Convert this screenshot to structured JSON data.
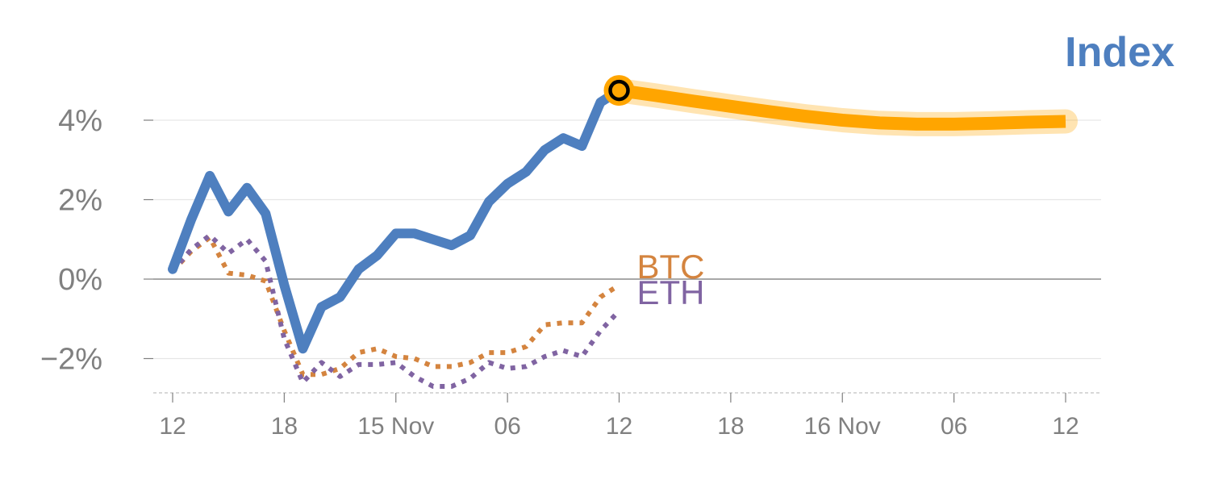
{
  "chart_data": {
    "type": "line",
    "title": "Index",
    "y_ticks": [
      "−2%",
      "0%",
      "2%",
      "4%"
    ],
    "y_tick_values": [
      -2,
      0,
      2,
      4
    ],
    "x_ticks": [
      "12",
      "18",
      "15 Nov",
      "06",
      "12",
      "18",
      "16 Nov",
      "06",
      "12"
    ],
    "x_tick_hours": [
      0,
      6,
      12,
      18,
      24,
      30,
      36,
      42,
      48
    ],
    "ylim": [
      -2.85,
      4.9
    ],
    "xlim": [
      -1,
      50
    ],
    "grid": true,
    "series": [
      {
        "name": "",
        "style": "solid",
        "color": "#4e7fbf",
        "x": [
          0,
          1,
          2,
          3,
          4,
          5,
          6,
          7,
          8,
          9,
          10,
          11,
          12,
          13,
          14,
          15,
          16,
          17,
          18,
          19,
          20,
          21,
          22,
          23,
          24
        ],
        "y": [
          0.25,
          1.5,
          2.6,
          1.7,
          2.3,
          1.65,
          -0.15,
          -1.75,
          -0.7,
          -0.45,
          0.25,
          0.6,
          1.15,
          1.15,
          1.0,
          0.85,
          1.1,
          1.95,
          2.4,
          2.7,
          3.25,
          3.55,
          3.35,
          4.45,
          4.75
        ]
      },
      {
        "name": "BTC",
        "style": "dotted",
        "color": "#d4843f",
        "x": [
          0,
          1,
          2,
          3,
          4,
          5,
          6,
          7,
          8,
          9,
          10,
          11,
          12,
          13,
          14,
          15,
          16,
          17,
          18,
          19,
          20,
          21,
          22,
          23,
          24
        ],
        "y": [
          0.2,
          0.7,
          1.05,
          0.15,
          0.1,
          -0.05,
          -1.3,
          -2.4,
          -2.4,
          -2.25,
          -1.85,
          -1.75,
          -1.95,
          -2.0,
          -2.2,
          -2.2,
          -2.1,
          -1.85,
          -1.85,
          -1.7,
          -1.15,
          -1.1,
          -1.1,
          -0.45,
          -0.15
        ]
      },
      {
        "name": "ETH",
        "style": "dotted",
        "color": "#8064a2",
        "x": [
          0,
          1,
          2,
          3,
          4,
          5,
          6,
          7,
          8,
          9,
          10,
          11,
          12,
          13,
          14,
          15,
          16,
          17,
          18,
          19,
          20,
          21,
          22,
          23,
          24
        ],
        "y": [
          0.2,
          0.75,
          1.1,
          0.65,
          1.0,
          0.45,
          -1.5,
          -2.6,
          -2.1,
          -2.45,
          -2.15,
          -2.15,
          -2.1,
          -2.45,
          -2.7,
          -2.7,
          -2.5,
          -2.1,
          -2.25,
          -2.2,
          -1.95,
          -1.8,
          -1.95,
          -1.3,
          -0.8
        ]
      },
      {
        "name": "",
        "style": "forecast",
        "color": "#ffa500",
        "x": [
          24,
          26,
          28,
          30,
          32,
          34,
          36,
          38,
          40,
          42,
          44,
          46,
          48
        ],
        "y": [
          4.75,
          4.62,
          4.48,
          4.35,
          4.22,
          4.1,
          4.0,
          3.93,
          3.9,
          3.9,
          3.92,
          3.95,
          3.97
        ]
      }
    ],
    "marker": {
      "x": 24,
      "y": 4.75
    },
    "colors": {
      "title": "#4e7fbf",
      "grid": "#e6e6e6",
      "zero_line": "#8c8c8c",
      "axis": "#cccccc",
      "tick": "#808080"
    }
  }
}
